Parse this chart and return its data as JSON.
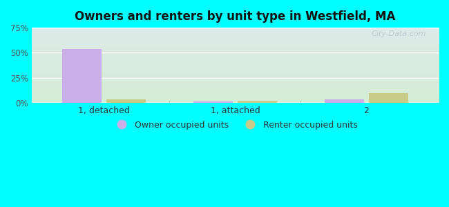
{
  "title": "Owners and renters by unit type in Westfield, MA",
  "categories": [
    "1, detached",
    "1, attached",
    "2"
  ],
  "owner_values": [
    54,
    1.5,
    3.5
  ],
  "renter_values": [
    3.5,
    2.0,
    9.5
  ],
  "owner_color": "#c9aee8",
  "renter_color": "#c8cc88",
  "ylim": [
    0,
    75
  ],
  "yticks": [
    0,
    25,
    50,
    75
  ],
  "yticklabels": [
    "0%",
    "25%",
    "50%",
    "75%"
  ],
  "legend_owner": "Owner occupied units",
  "legend_renter": "Renter occupied units",
  "bg_top": "#ddeae8",
  "bg_bottom": "#d5edd5",
  "outer_bg": "#00ffff",
  "bar_width": 0.3,
  "watermark": "City-Data.com"
}
